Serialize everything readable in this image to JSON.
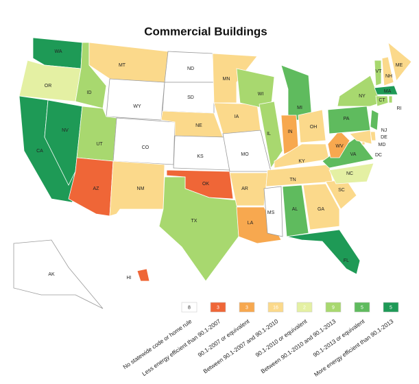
{
  "title": "Commercial Buildings",
  "legend": [
    {
      "label": "No statewide code or home rule",
      "count": 8,
      "color": "#ffffff"
    },
    {
      "label": "Less energy efficient than 90.1-2007",
      "count": 3,
      "color": "#ef6637"
    },
    {
      "label": "90.1-2007 or equivalent",
      "count": 3,
      "color": "#f7a84f"
    },
    {
      "label": "Between 90.1-2007 and 90.1-2010",
      "count": 16,
      "color": "#fbd98b"
    },
    {
      "label": "90.1-2010 or equivalent",
      "count": 2,
      "color": "#e4f0a3"
    },
    {
      "label": "Between 90.1-2010 and 90.1-2013",
      "count": 9,
      "color": "#a8d86f"
    },
    {
      "label": "90.1-2013 or equivalent",
      "count": 5,
      "color": "#5fbb5e"
    },
    {
      "label": "More energy efficient than 90.1-2013",
      "count": 5,
      "color": "#1e9a56"
    }
  ],
  "states": [
    {
      "abbr": "WA",
      "category": 7
    },
    {
      "abbr": "OR",
      "category": 4
    },
    {
      "abbr": "CA",
      "category": 7
    },
    {
      "abbr": "NV",
      "category": 7
    },
    {
      "abbr": "ID",
      "category": 5
    },
    {
      "abbr": "MT",
      "category": 3
    },
    {
      "abbr": "WY",
      "category": 0
    },
    {
      "abbr": "UT",
      "category": 5
    },
    {
      "abbr": "CO",
      "category": 0
    },
    {
      "abbr": "AZ",
      "category": 1
    },
    {
      "abbr": "NM",
      "category": 3
    },
    {
      "abbr": "ND",
      "category": 0
    },
    {
      "abbr": "SD",
      "category": 0
    },
    {
      "abbr": "NE",
      "category": 3
    },
    {
      "abbr": "KS",
      "category": 0
    },
    {
      "abbr": "OK",
      "category": 1
    },
    {
      "abbr": "TX",
      "category": 5
    },
    {
      "abbr": "MN",
      "category": 3
    },
    {
      "abbr": "IA",
      "category": 3
    },
    {
      "abbr": "MO",
      "category": 0
    },
    {
      "abbr": "AR",
      "category": 3
    },
    {
      "abbr": "LA",
      "category": 2
    },
    {
      "abbr": "WI",
      "category": 5
    },
    {
      "abbr": "IL",
      "category": 5
    },
    {
      "abbr": "MI",
      "category": 6
    },
    {
      "abbr": "IN",
      "category": 2
    },
    {
      "abbr": "OH",
      "category": 3
    },
    {
      "abbr": "KY",
      "category": 3
    },
    {
      "abbr": "TN",
      "category": 3
    },
    {
      "abbr": "MS",
      "category": 0
    },
    {
      "abbr": "AL",
      "category": 6
    },
    {
      "abbr": "GA",
      "category": 3
    },
    {
      "abbr": "FL",
      "category": 7
    },
    {
      "abbr": "SC",
      "category": 3
    },
    {
      "abbr": "NC",
      "category": 4
    },
    {
      "abbr": "VA",
      "category": 6
    },
    {
      "abbr": "WV",
      "category": 2
    },
    {
      "abbr": "PA",
      "category": 6
    },
    {
      "abbr": "NY",
      "category": 5
    },
    {
      "abbr": "VT",
      "category": 5
    },
    {
      "abbr": "NH",
      "category": 3
    },
    {
      "abbr": "ME",
      "category": 3
    },
    {
      "abbr": "MA",
      "category": 7
    },
    {
      "abbr": "CT",
      "category": 5
    },
    {
      "abbr": "RI",
      "category": 5
    },
    {
      "abbr": "NJ",
      "category": 6
    },
    {
      "abbr": "DE",
      "category": 3
    },
    {
      "abbr": "MD",
      "category": 3
    },
    {
      "abbr": "DC",
      "category": 3
    },
    {
      "abbr": "HI",
      "category": 1
    },
    {
      "abbr": "AK",
      "category": 0
    }
  ]
}
